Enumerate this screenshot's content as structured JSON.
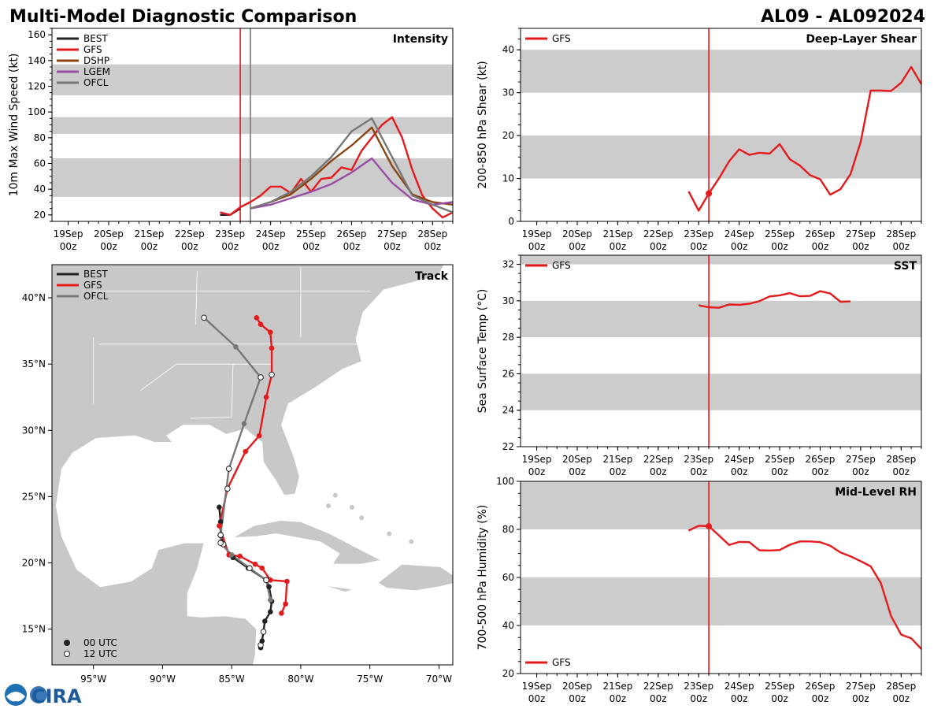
{
  "header": {
    "left_title": "Multi-Model Diagnostic Comparison",
    "right_title": "AL09 - AL092024"
  },
  "colors": {
    "best": "#222222",
    "gfs": "#e41a1c",
    "dshp": "#8b4513",
    "lgem": "#984ea3",
    "ofcl": "#777777",
    "band": "#cccccc",
    "land": "#c8c8c8"
  },
  "time_axis": {
    "xlim": [
      -0.4,
      9.5
    ],
    "ticks": [
      0,
      1,
      2,
      3,
      4,
      5,
      6,
      7,
      8,
      9
    ],
    "labels_top": [
      "19Sep",
      "20Sep",
      "21Sep",
      "22Sep",
      "23Sep",
      "24Sep",
      "25Sep",
      "26Sep",
      "27Sep",
      "28Sep"
    ],
    "labels_bottom": [
      "00z",
      "00z",
      "00z",
      "00z",
      "00z",
      "00z",
      "00z",
      "00z",
      "00z",
      "00z"
    ]
  },
  "chart_data": [
    {
      "id": "intensity",
      "type": "line",
      "title": "Intensity",
      "xlabel": "",
      "ylabel": "10m Max Wind Speed (kt)",
      "ylim": [
        15,
        165
      ],
      "yticks": [
        20,
        40,
        60,
        80,
        100,
        120,
        140,
        160
      ],
      "bands": [
        [
          34,
          64
        ],
        [
          83,
          96
        ],
        [
          113,
          137
        ]
      ],
      "vlines": [
        {
          "x": 4.25,
          "color": "gfs"
        },
        {
          "x": 4.5,
          "color": "ofcl"
        }
      ],
      "legend": [
        "BEST",
        "GFS",
        "DSHP",
        "LGEM",
        "OFCL"
      ],
      "series": [
        {
          "name": "BEST",
          "color": "best",
          "x": [
            3.75,
            4,
            4.25
          ],
          "y": [
            20,
            20,
            25
          ]
        },
        {
          "name": "GFS",
          "color": "gfs",
          "x": [
            3.75,
            4,
            4.25,
            4.5,
            4.75,
            5,
            5.25,
            5.5,
            5.75,
            6,
            6.25,
            6.5,
            6.75,
            7,
            7.25,
            7.5,
            7.75,
            8,
            8.25,
            8.5,
            8.75,
            9,
            9.25,
            9.5
          ],
          "y": [
            22,
            20,
            26,
            30,
            35,
            42,
            42,
            37,
            48,
            38,
            48,
            49,
            57,
            55,
            70,
            80,
            90,
            96,
            80,
            55,
            35,
            25,
            18,
            22
          ]
        },
        {
          "name": "DSHP",
          "color": "dshp",
          "x": [
            4.5,
            5,
            5.5,
            6,
            6.5,
            7,
            7.5,
            8,
            8.5,
            9,
            9.5
          ],
          "y": [
            25,
            30,
            36,
            48,
            62,
            74,
            88,
            58,
            36,
            30,
            28
          ]
        },
        {
          "name": "LGEM",
          "color": "lgem",
          "x": [
            4.5,
            5,
            5.5,
            6,
            6.5,
            7,
            7.5,
            8,
            8.5,
            9,
            9.5
          ],
          "y": [
            25,
            28,
            33,
            38,
            44,
            53,
            64,
            45,
            32,
            28,
            30
          ]
        },
        {
          "name": "OFCL",
          "color": "ofcl",
          "x": [
            4.5,
            5,
            5.5,
            6,
            6.5,
            7,
            7.5,
            8,
            8.5,
            9,
            9.5
          ],
          "y": [
            25,
            30,
            38,
            50,
            65,
            85,
            95,
            65,
            35,
            28,
            22
          ]
        }
      ]
    },
    {
      "id": "shear",
      "type": "line",
      "title": "Deep-Layer Shear",
      "xlabel": "",
      "ylabel": "200-850 hPa Shear (kt)",
      "ylim": [
        0,
        45
      ],
      "yticks": [
        0,
        10,
        20,
        30,
        40
      ],
      "bands": [
        [
          10,
          20
        ],
        [
          30,
          40
        ]
      ],
      "vlines": [
        {
          "x": 4.25,
          "color": "gfs"
        }
      ],
      "marker": {
        "x": 4.25,
        "y": 6.5
      },
      "legend": [
        "GFS"
      ],
      "series": [
        {
          "name": "GFS",
          "color": "gfs",
          "x": [
            3.75,
            4,
            4.25,
            4.5,
            4.75,
            5,
            5.25,
            5.5,
            5.75,
            6,
            6.25,
            6.5,
            6.75,
            7,
            7.25,
            7.5,
            7.75,
            8,
            8.25,
            8.5,
            8.75,
            9,
            9.25,
            9.5
          ],
          "y": [
            7,
            2.5,
            6.5,
            10,
            14,
            16.8,
            15.5,
            16,
            15.8,
            18,
            14.5,
            13,
            10.8,
            9.8,
            6.2,
            7.5,
            11,
            18.5,
            30.5,
            30.5,
            30.4,
            32.3,
            36,
            32
          ]
        }
      ]
    },
    {
      "id": "sst",
      "type": "line",
      "title": "SST",
      "xlabel": "",
      "ylabel": "Sea Surface Temp (°C)",
      "ylim": [
        22,
        32.5
      ],
      "yticks": [
        22,
        24,
        26,
        28,
        30,
        32
      ],
      "bands": [
        [
          24,
          26
        ],
        [
          28,
          30
        ],
        [
          32,
          32.5
        ]
      ],
      "vlines": [
        {
          "x": 4.25,
          "color": "gfs"
        }
      ],
      "legend": [
        "GFS"
      ],
      "series": [
        {
          "name": "GFS",
          "color": "gfs",
          "x": [
            4,
            4.25,
            4.5,
            4.75,
            5,
            5.25,
            5.5,
            5.75,
            6,
            6.25,
            6.5,
            6.75,
            7,
            7.25,
            7.5,
            7.75
          ],
          "y": [
            29.75,
            29.65,
            29.62,
            29.8,
            29.78,
            29.84,
            29.98,
            30.24,
            30.3,
            30.42,
            30.25,
            30.27,
            30.53,
            30.4,
            29.95,
            29.97
          ]
        }
      ]
    },
    {
      "id": "rh",
      "type": "line",
      "title": "Mid-Level RH",
      "xlabel": "",
      "ylabel": "700-500 hPa Humidity (%)",
      "ylim": [
        20,
        100
      ],
      "yticks": [
        20,
        40,
        60,
        80,
        100
      ],
      "bands": [
        [
          40,
          60
        ],
        [
          80,
          100
        ]
      ],
      "vlines": [
        {
          "x": 4.25,
          "color": "gfs"
        }
      ],
      "marker": {
        "x": 4.25,
        "y": 81.3
      },
      "legend": [
        "GFS"
      ],
      "series": [
        {
          "name": "GFS",
          "color": "gfs",
          "x": [
            3.75,
            4,
            4.25,
            4.5,
            4.75,
            5,
            5.25,
            5.5,
            5.75,
            6,
            6.25,
            6.5,
            6.75,
            7,
            7.25,
            7.5,
            7.75,
            8,
            8.25,
            8.5,
            8.75,
            9,
            9.25,
            9.5
          ],
          "y": [
            79.5,
            81.5,
            81.3,
            77.5,
            73.5,
            74.8,
            74.7,
            71.3,
            71.2,
            71.4,
            73.6,
            75,
            75,
            74.7,
            73.2,
            70.4,
            68.8,
            66.8,
            64.6,
            57.6,
            44,
            36.2,
            34.7,
            30.2
          ]
        }
      ]
    },
    {
      "id": "track",
      "type": "scatter",
      "title": "Track",
      "xlabel": "",
      "ylabel": "",
      "xlim": [
        -98,
        -69
      ],
      "ylim": [
        12.3,
        42.5
      ],
      "xticks": [
        -95,
        -90,
        -85,
        -80,
        -75,
        -70
      ],
      "xticklabels": [
        "95°W",
        "90°W",
        "85°W",
        "80°W",
        "75°W",
        "70°W"
      ],
      "yticks": [
        15,
        20,
        25,
        30,
        35,
        40
      ],
      "yticklabels": [
        "15°N",
        "20°N",
        "25°N",
        "30°N",
        "35°N",
        "40°N"
      ],
      "legend": [
        "BEST",
        "GFS",
        "OFCL"
      ],
      "marker_legend": [
        "00 UTC",
        "12 UTC"
      ],
      "series": [
        {
          "name": "BEST",
          "color": "best",
          "lon": [
            -82.9,
            -82.9,
            -82.8,
            -82.7,
            -82.6,
            -82.2,
            -82.1,
            -82.3,
            -82.5,
            -83.8,
            -84.9,
            -85.1,
            -85.6,
            -85.8,
            -85.8,
            -85.9
          ],
          "lat": [
            13.6,
            13.8,
            14.1,
            14.8,
            15.6,
            16.3,
            17.1,
            18.2,
            18.7,
            19.6,
            20.4,
            20.6,
            21.4,
            22.1,
            23.1,
            24.2
          ],
          "hollow": [
            false,
            true,
            false,
            true,
            false,
            false,
            false,
            false,
            true,
            false,
            false,
            false,
            true,
            true,
            false,
            false
          ]
        },
        {
          "name": "GFS",
          "color": "gfs",
          "lon": [
            -81.4,
            -81.1,
            -81.0,
            -82.2,
            -82.8,
            -83.3,
            -84.4,
            -85.2,
            -85.9,
            -85.3,
            -84.0,
            -83.0,
            -82.5,
            -82.1,
            -82.1,
            -82.2,
            -82.9,
            -83.2
          ],
          "lat": [
            16.2,
            16.9,
            18.6,
            18.7,
            19.6,
            19.9,
            20.5,
            20.6,
            22.8,
            25.6,
            28.4,
            29.6,
            32.5,
            34.2,
            36.2,
            37.4,
            38.0,
            38.5
          ],
          "hollow": [
            false,
            false,
            false,
            false,
            false,
            false,
            false,
            false,
            false,
            true,
            false,
            false,
            false,
            true,
            false,
            false,
            false,
            false
          ]
        },
        {
          "name": "OFCL",
          "color": "ofcl",
          "lon": [
            -82.2,
            -82.5,
            -83.7,
            -85.0,
            -85.8,
            -85.8,
            -85.2,
            -84.1,
            -82.9,
            -84.7,
            -87.0
          ],
          "lat": [
            17.2,
            18.7,
            19.6,
            20.6,
            21.5,
            22.1,
            27.1,
            30.5,
            34.0,
            36.3,
            38.5
          ],
          "hollow": [
            false,
            true,
            true,
            false,
            true,
            true,
            true,
            false,
            true,
            false,
            true
          ]
        }
      ]
    }
  ],
  "map_title": "Track",
  "logos": {
    "cira": "CIRA",
    "noaa": "NOAA"
  }
}
